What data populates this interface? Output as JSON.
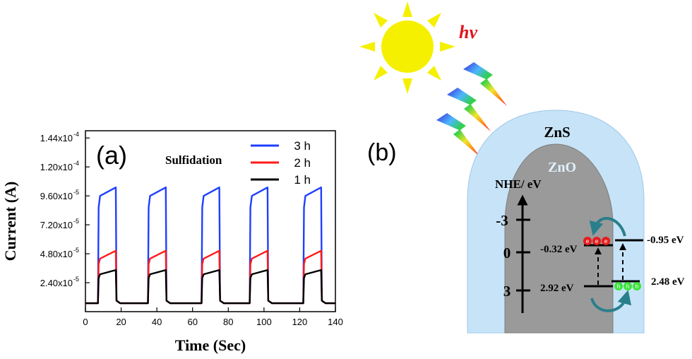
{
  "chart_data": {
    "type": "line",
    "panel_label": "(a)",
    "xlabel": "Time (Sec)",
    "ylabel": "Current (A)",
    "xlim": [
      0,
      140
    ],
    "ylim": [
      0,
      0.00015
    ],
    "x_ticks": [
      "0",
      "20",
      "40",
      "60",
      "80",
      "100",
      "120",
      "140"
    ],
    "y_ticks": [
      {
        "base": "2.40x10",
        "exp": "-5"
      },
      {
        "base": "4.80x10",
        "exp": "-5"
      },
      {
        "base": "7.20x10",
        "exp": "-5"
      },
      {
        "base": "9.60x10",
        "exp": "-5"
      },
      {
        "base": "1.20x10",
        "exp": "-4"
      },
      {
        "base": "1.44x10",
        "exp": "-4"
      }
    ],
    "legend_title": "Sulfidation",
    "legend_position": "top-right",
    "on_periods": [
      [
        7,
        17
      ],
      [
        35,
        45
      ],
      [
        65,
        75
      ],
      [
        92,
        102
      ],
      [
        122,
        132
      ]
    ],
    "dark_current": 7e-06,
    "series": [
      {
        "name": "3 h",
        "color": "#1f3fff",
        "start": 9.6e-05,
        "end": 0.000103
      },
      {
        "name": "2 h",
        "color": "#ff1a1a",
        "start": 4.4e-05,
        "end": 5.05e-05
      },
      {
        "name": "1 h",
        "color": "#000000",
        "start": 3.1e-05,
        "end": 3.45e-05
      }
    ]
  },
  "diagram": {
    "panel_label": "(b)",
    "hv_label": "hv",
    "shell_label": "ZnS",
    "core_label": "ZnO",
    "axis_title": "NHE/ eV",
    "axis_ticks": [
      "-3",
      "0",
      "3"
    ],
    "left_cb": "-0.32 eV",
    "left_vb": "2.92 eV",
    "right_cb": "-0.95 eV",
    "right_vb": "2.48 eV",
    "electron": "e",
    "hole": "h"
  }
}
